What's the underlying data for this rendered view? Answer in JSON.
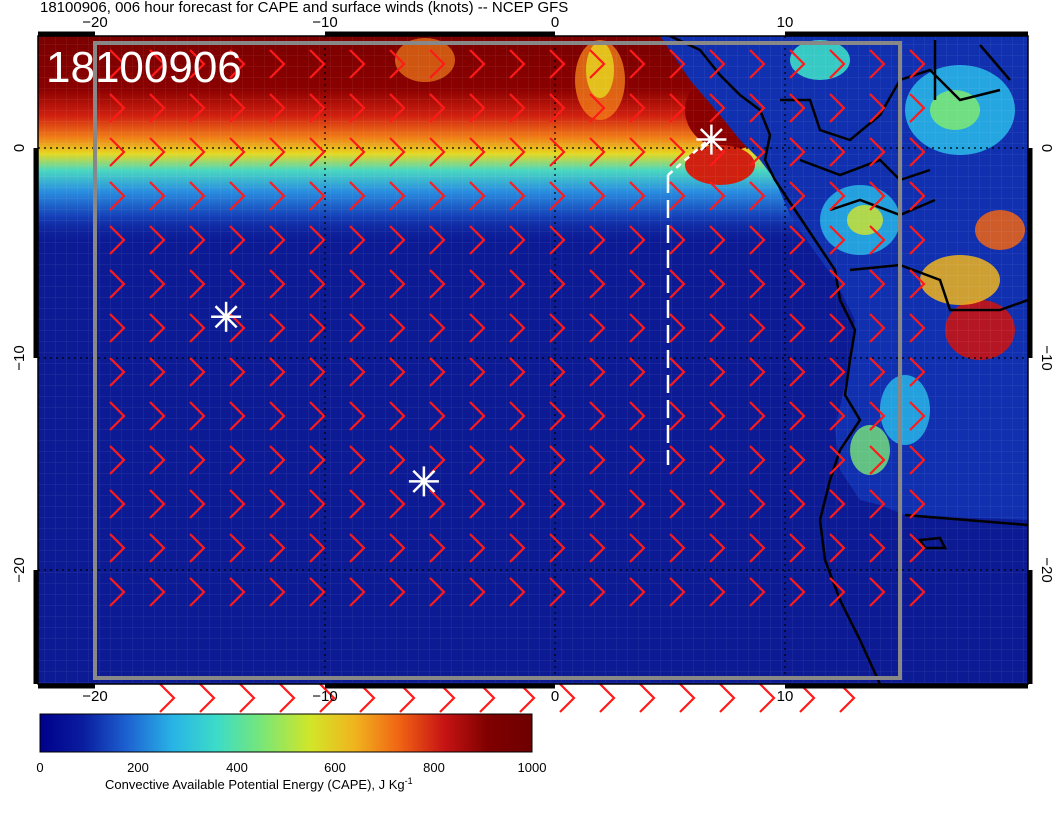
{
  "title": "18100906, 006 hour forecast for CAPE and surface winds (knots) -- NCEP GFS",
  "stamp": "18100906",
  "lon_ticks": [
    "−20",
    "−10",
    "0",
    "10"
  ],
  "lat_ticks_left": [
    "0",
    "−10",
    "−20"
  ],
  "lat_ticks_right": [
    "0",
    "−10",
    "−20"
  ],
  "colorbar": {
    "ticks": [
      "0",
      "200",
      "400",
      "600",
      "800",
      "1000"
    ],
    "label": "Convective Available Potential Energy (CAPE), J Kg",
    "label_sup": "-1",
    "colors": [
      "#00008b",
      "#0a1ea0",
      "#1e64d2",
      "#28b4e6",
      "#3cdcc8",
      "#78e678",
      "#d2e628",
      "#f0b41e",
      "#f06414",
      "#c81414",
      "#800000",
      "#6e0000"
    ]
  },
  "colors": {
    "ocean": "#0c1a94",
    "high_cape": "#7a0000",
    "wind_barb": "#ff1a1a",
    "coast": "#000000",
    "marker": "#ffffff"
  },
  "markers": [
    {
      "name": "storm-marker-west",
      "lon": -14.3,
      "lat": -8
    },
    {
      "name": "storm-marker-south",
      "lon": -5.7,
      "lat": -15.8
    },
    {
      "name": "storm-marker-north",
      "lon": 6.8,
      "lat": 0.4
    }
  ],
  "chart_data": {
    "type": "map",
    "title": "18100906, 006 hour forecast for CAPE and surface winds (knots) -- NCEP GFS",
    "variables": [
      "CAPE (J Kg-1)",
      "surface winds (knots)"
    ],
    "lon_range": [
      -22.5,
      20.8
    ],
    "lat_range": [
      -24.9,
      5.1
    ],
    "cape_range": [
      0,
      1000
    ],
    "wind_barbs": "red, southerly/southeasterly flow over ocean"
  }
}
